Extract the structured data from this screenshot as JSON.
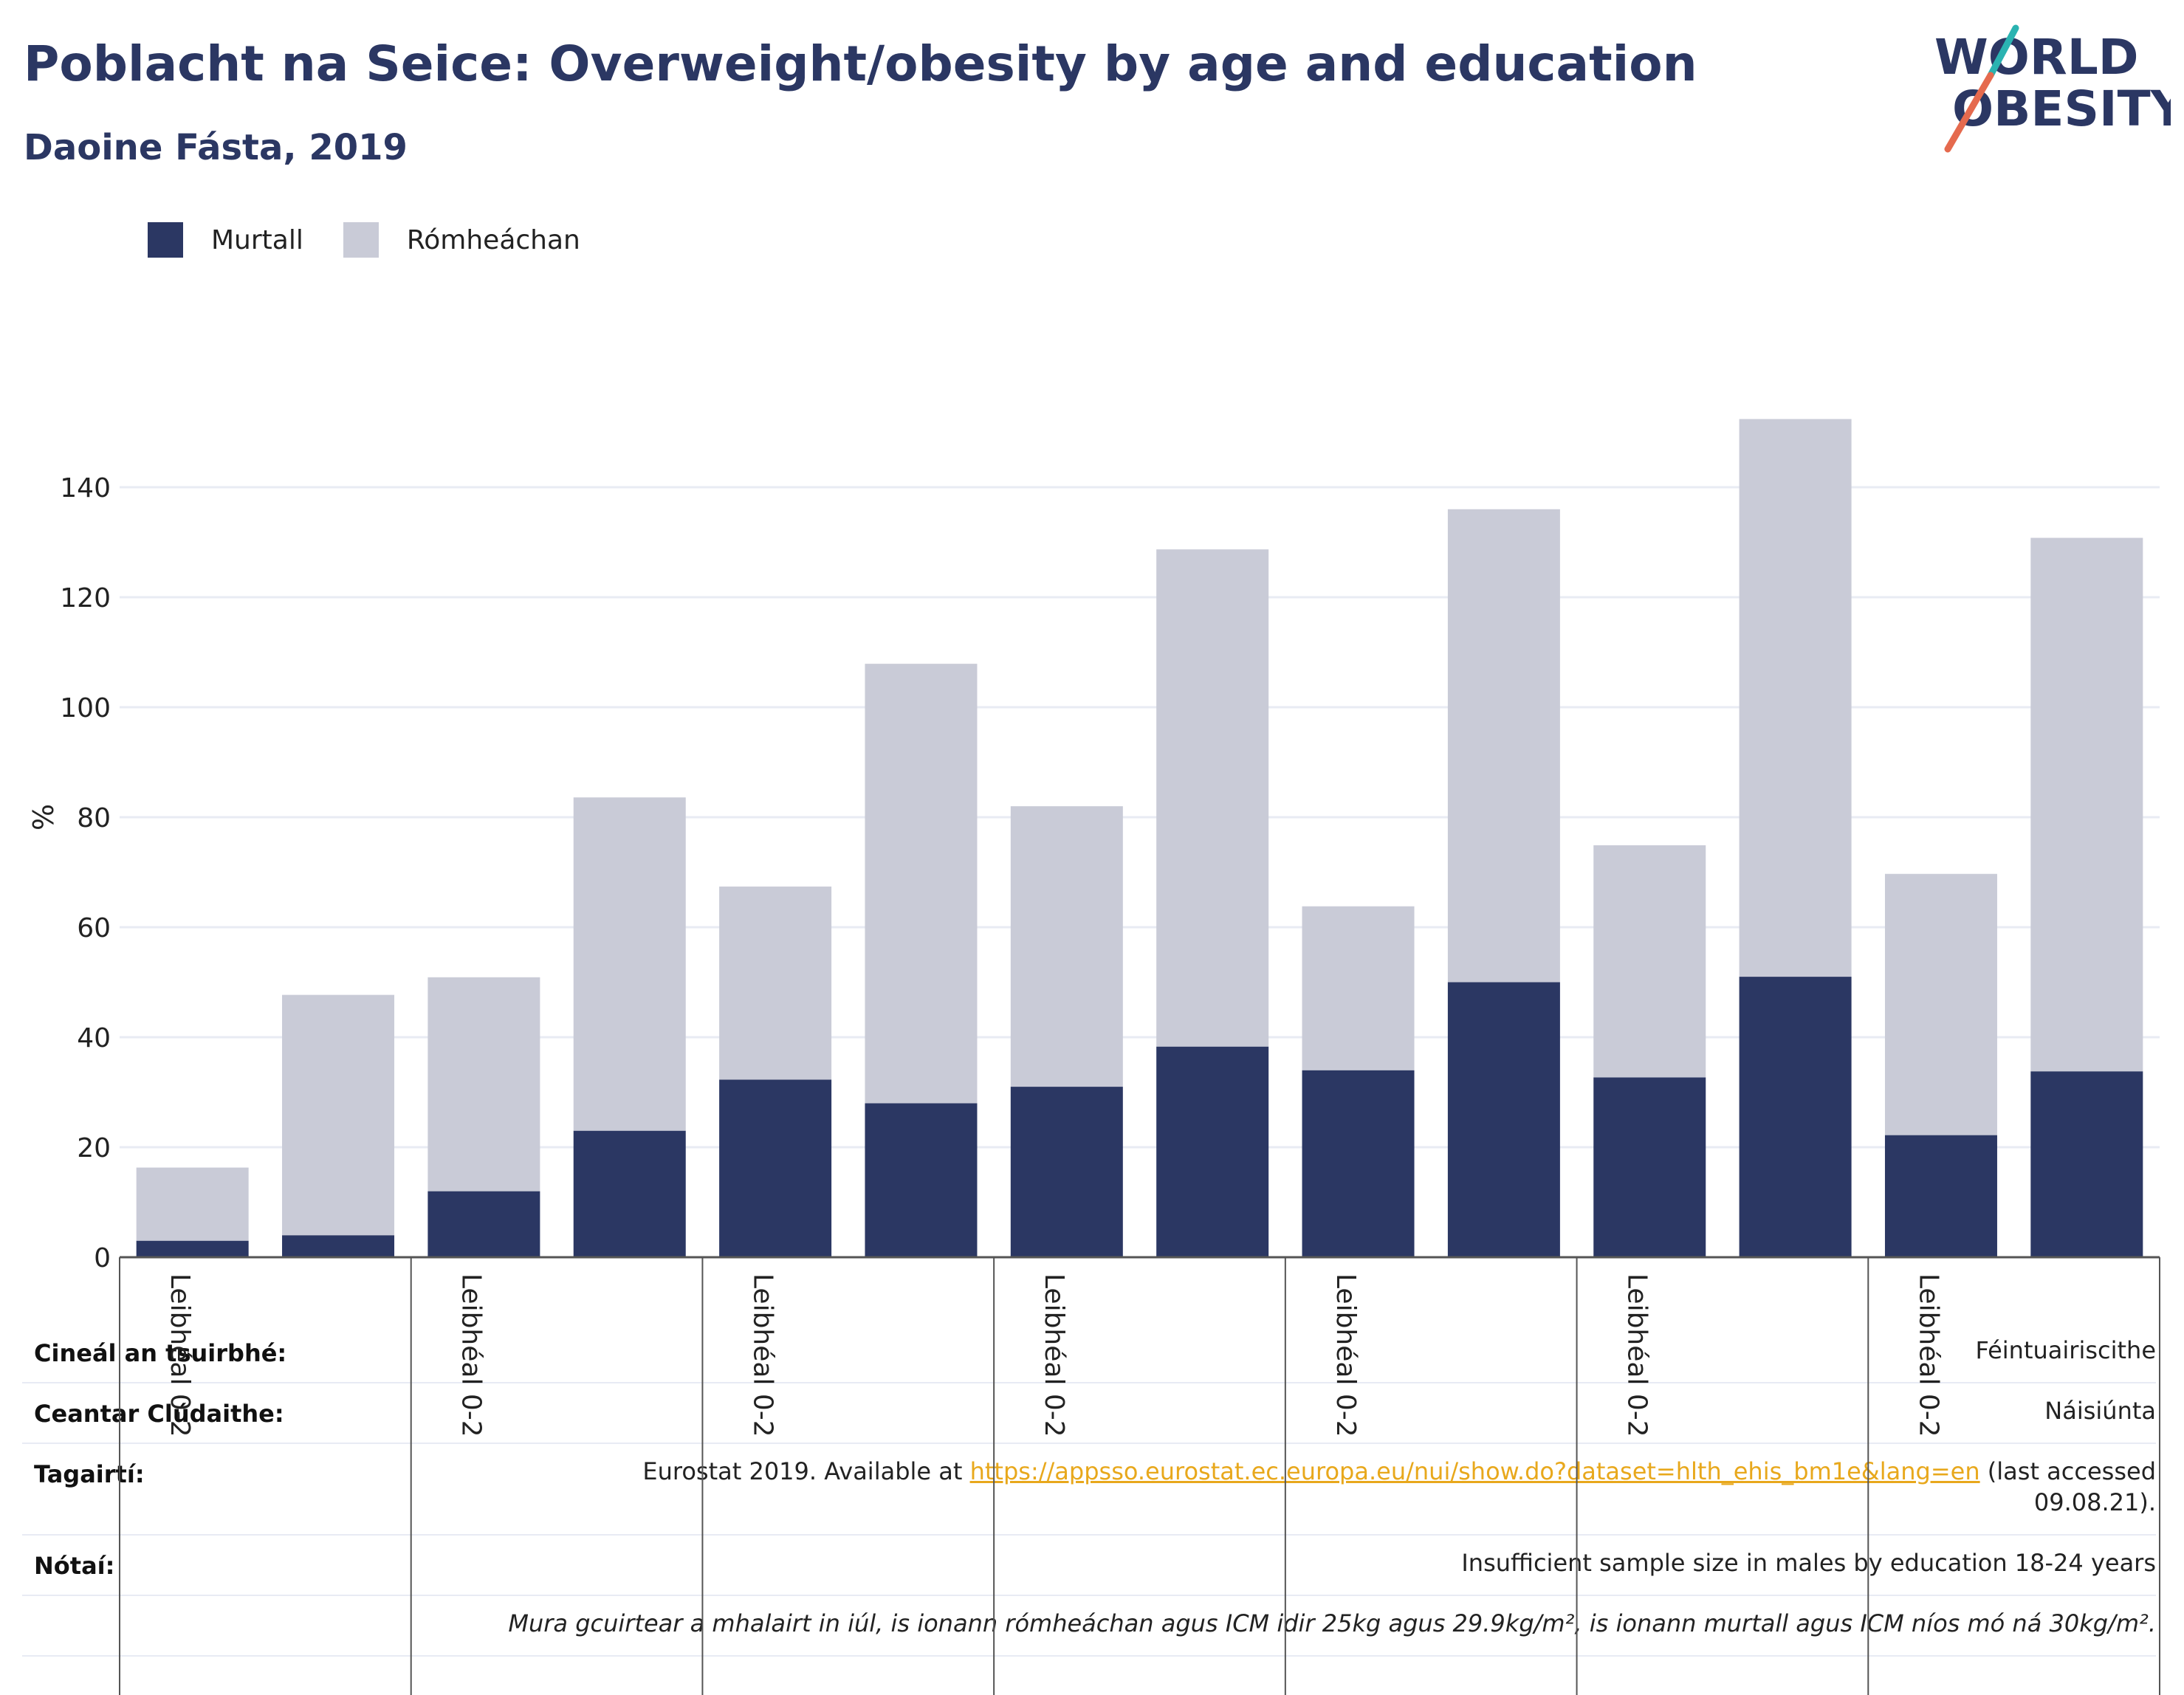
{
  "title": "Poblacht na Seice: Overweight/obesity by age and education",
  "subtitle": "Daoine Fásta, 2019",
  "logo": {
    "line1": "WORLD",
    "line2": "OBESITY"
  },
  "legend": [
    {
      "label": "Murtall",
      "color": "#2b3763"
    },
    {
      "label": "Rómheáchan",
      "color": "#c9cbd7"
    }
  ],
  "chart_data": {
    "type": "bar",
    "stacked": true,
    "ylabel": "%",
    "ylim": [
      0,
      155
    ],
    "yticks": [
      0,
      20,
      40,
      60,
      80,
      100,
      120,
      140
    ],
    "grid": true,
    "legend_position": "top-left",
    "group_labels": [
      "Leibhéal 0-2",
      "Leibhéal 0-2",
      "Leibhéal 0-2",
      "Leibhéal 0-2",
      "Leibhéal 0-2",
      "Leibhéal 0-2",
      "Leibhéal 0-2"
    ],
    "series": [
      {
        "name": "Murtall",
        "color": "#2b3763",
        "values": [
          3,
          4,
          12,
          23,
          32.3,
          28,
          31,
          38.3,
          34,
          50,
          32.7,
          51,
          22.2,
          33.8
        ]
      },
      {
        "name": "Rómheáchan",
        "color": "#c9cbd7",
        "values": [
          13.3,
          43.7,
          38.9,
          60.6,
          35.1,
          79.9,
          51,
          90.4,
          29.8,
          86,
          42.2,
          101.4,
          47.5,
          97
        ]
      }
    ]
  },
  "info": {
    "survey_key": "Cineál an tsuirbhé:",
    "survey_value": "Féintuairiscithe",
    "coverage_key": "Ceantar Clúdaithe:",
    "coverage_value": "Náisiúnta",
    "refs_key": "Tagairtí:",
    "refs_prefix": "Eurostat 2019. Available at ",
    "refs_link": "https://appsso.eurostat.ec.europa.eu/nui/show.do?dataset=hlth_ehis_bm1e&lang=en",
    "refs_suffix": " (last accessed",
    "refs_date": "09.08.21).",
    "notes_key": "Nótaí:",
    "notes_value": "Insufficient sample size in males by education 18-24 years",
    "definition": "Mura gcuirtear a mhalairt in iúl, is ionann rómheáchan agus ICM idir 25kg agus 29.9kg/m², is ionann murtall agus ICM níos mó ná 30kg/m²."
  }
}
